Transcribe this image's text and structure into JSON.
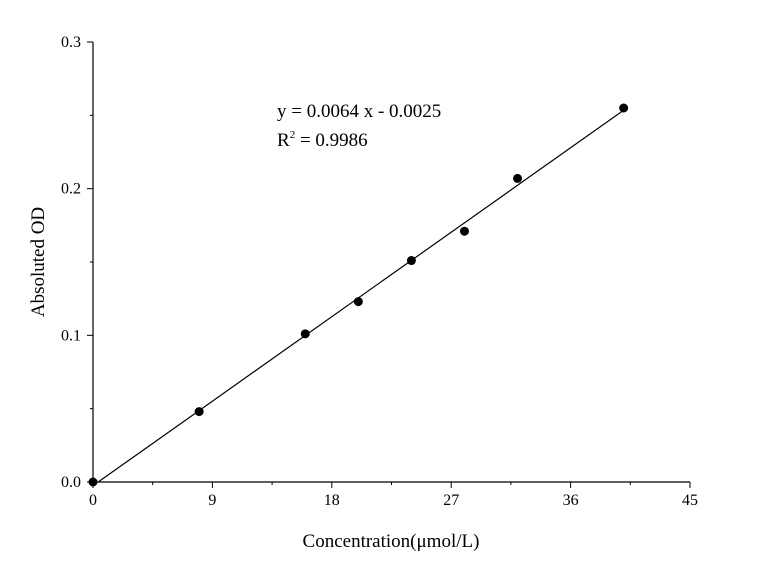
{
  "chart_data": {
    "type": "scatter",
    "xlabel": "Concentration(μmol/L)",
    "ylabel": "Absoluted OD",
    "xlim": [
      0,
      45
    ],
    "ylim": [
      0,
      0.3
    ],
    "x_ticks": [
      0,
      9,
      18,
      27,
      36,
      45
    ],
    "x_tick_labels": [
      "0",
      "9",
      "18",
      "27",
      "36",
      "45"
    ],
    "y_ticks": [
      0,
      0.1,
      0.2,
      0.3
    ],
    "y_tick_labels": [
      "0.0",
      "0.1",
      "0.2",
      "0.3"
    ],
    "grid": false,
    "points": [
      {
        "x": 0,
        "y": 0.0
      },
      {
        "x": 8,
        "y": 0.048
      },
      {
        "x": 16,
        "y": 0.101
      },
      {
        "x": 20,
        "y": 0.123
      },
      {
        "x": 24,
        "y": 0.151
      },
      {
        "x": 28,
        "y": 0.171
      },
      {
        "x": 32,
        "y": 0.207
      },
      {
        "x": 40,
        "y": 0.255
      }
    ],
    "fit_line": {
      "slope": 0.0064,
      "intercept": -0.0025,
      "x_range": [
        0,
        40
      ]
    },
    "annotations": {
      "equation": "y = 0.0064 x - 0.0025",
      "r2_prefix": "R",
      "r2_superscript": "2",
      "r2_value": " = 0.9986"
    }
  }
}
